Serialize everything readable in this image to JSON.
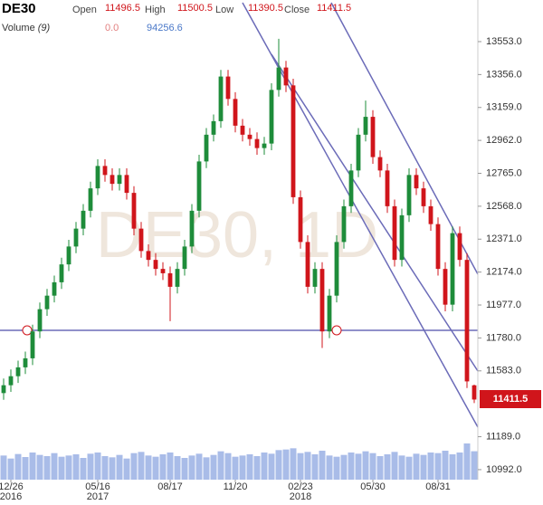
{
  "chart_data": {
    "type": "candlestick",
    "symbol": "DE30",
    "watermark": "DE30, 1D",
    "ohlc_header": [
      {
        "name": "Open",
        "value": 11496.5
      },
      {
        "name": "High",
        "value": 11500.5
      },
      {
        "name": "Low",
        "value": 11390.5
      },
      {
        "name": "Close",
        "value": 11411.5
      }
    ],
    "volume_header": {
      "name": "Volume",
      "period": "(9)",
      "values": [
        {
          "value": 0,
          "label": "0.0"
        },
        94256.6
      ]
    },
    "categories": [
      null,
      "12/26",
      null,
      null,
      null,
      null,
      null,
      null,
      null,
      null,
      null,
      null,
      null,
      "05/16",
      null,
      null,
      null,
      null,
      null,
      null,
      null,
      null,
      null,
      "08/17",
      null,
      null,
      null,
      null,
      null,
      null,
      null,
      null,
      "11/20",
      null,
      null,
      null,
      null,
      null,
      null,
      null,
      null,
      "02/23",
      null,
      null,
      null,
      null,
      null,
      null,
      null,
      null,
      null,
      "05/30",
      null,
      null,
      null,
      null,
      null,
      null,
      null,
      null,
      "08/31",
      null,
      null,
      null,
      null,
      null
    ],
    "years": [
      null,
      "2016",
      null,
      null,
      null,
      null,
      null,
      null,
      null,
      null,
      null,
      null,
      null,
      "2017",
      null,
      null,
      null,
      null,
      null,
      null,
      null,
      null,
      null,
      null,
      null,
      null,
      null,
      null,
      null,
      null,
      null,
      null,
      null,
      null,
      null,
      null,
      null,
      null,
      null,
      null,
      null,
      "2018",
      null,
      null,
      null,
      null,
      null,
      null,
      null,
      null,
      null,
      null,
      null,
      null,
      null,
      null,
      null,
      null,
      null,
      null,
      null,
      null,
      null,
      null,
      null,
      null
    ],
    "open": [
      11450,
      11497,
      11551,
      11604,
      11658,
      11819,
      11952,
      12033,
      12113,
      12220,
      12327,
      12434,
      12541,
      12675,
      12809,
      12755,
      12702,
      12755,
      12648,
      12434,
      12300,
      12247,
      12193,
      12167,
      12086,
      12193,
      12327,
      12541,
      12836,
      12996,
      13077,
      13344,
      13210,
      13050,
      12996,
      12970,
      12916,
      12943,
      13264,
      13398,
      13291,
      12622,
      12354,
      12086,
      12193,
      11819,
      12033,
      12354,
      12568,
      12782,
      12996,
      13103,
      12862,
      12782,
      12568,
      12247,
      12514,
      12755,
      12675,
      12568,
      12461,
      12193,
      11979,
      12407,
      12247,
      11496.5
    ],
    "high": [
      11537,
      11591,
      11644,
      11698,
      11859,
      11992,
      12073,
      12153,
      12260,
      12367,
      12474,
      12581,
      12715,
      12849,
      12849,
      12795,
      12795,
      12795,
      12688,
      12474,
      12340,
      12287,
      12233,
      12207,
      12233,
      12367,
      12581,
      12876,
      13036,
      13117,
      13384,
      13384,
      13250,
      13090,
      13036,
      13010,
      12983,
      13304,
      13570,
      13438,
      13331,
      12662,
      12394,
      12233,
      12233,
      12073,
      12394,
      12608,
      12822,
      13036,
      13200,
      13143,
      12902,
      12822,
      12608,
      12554,
      12795,
      12795,
      12715,
      12608,
      12501,
      12233,
      12447,
      12447,
      12287,
      11500.5
    ],
    "low": [
      11410,
      11457,
      11511,
      11564,
      11618,
      11779,
      11912,
      11993,
      12073,
      12180,
      12287,
      12394,
      12501,
      12635,
      12715,
      12662,
      12662,
      12608,
      12394,
      12260,
      12207,
      12153,
      12127,
      11880,
      12046,
      12153,
      12287,
      12501,
      12796,
      12956,
      13037,
      13170,
      13010,
      12956,
      12930,
      12876,
      12876,
      12903,
      13224,
      13251,
      12582,
      12314,
      12046,
      12046,
      11720,
      11779,
      11993,
      12314,
      12528,
      12742,
      12956,
      12822,
      12742,
      12528,
      12207,
      12207,
      12474,
      12635,
      12528,
      12421,
      12153,
      11939,
      11939,
      12207,
      11480,
      11390.5
    ],
    "close": [
      11497,
      11551,
      11604,
      11658,
      11819,
      11952,
      12033,
      12113,
      12220,
      12327,
      12434,
      12541,
      12675,
      12809,
      12755,
      12702,
      12755,
      12648,
      12434,
      12300,
      12247,
      12193,
      12167,
      12086,
      12193,
      12327,
      12541,
      12836,
      12996,
      13077,
      13344,
      13210,
      13050,
      12996,
      12970,
      12916,
      12943,
      13264,
      13398,
      13291,
      12622,
      12354,
      12086,
      12193,
      11819,
      12033,
      12354,
      12568,
      12782,
      12996,
      13103,
      12862,
      12782,
      12568,
      12247,
      12514,
      12755,
      12675,
      12568,
      12461,
      12193,
      11979,
      12407,
      12247,
      11520,
      11411.5
    ],
    "volume": [
      80000,
      70000,
      85000,
      75000,
      90000,
      82000,
      78000,
      88000,
      76000,
      80000,
      84000,
      72000,
      86000,
      90000,
      78000,
      74000,
      82000,
      70000,
      88000,
      92000,
      80000,
      76000,
      84000,
      90000,
      78000,
      72000,
      80000,
      86000,
      74000,
      82000,
      94000,
      88000,
      76000,
      80000,
      84000,
      78000,
      90000,
      86000,
      98000,
      100000,
      104000,
      88000,
      92000,
      84000,
      96000,
      80000,
      76000,
      82000,
      90000,
      86000,
      94000,
      88000,
      78000,
      84000,
      92000,
      80000,
      76000,
      86000,
      82000,
      90000,
      88000,
      96000,
      84000,
      90000,
      120000,
      94256.6
    ],
    "up_color": "#1e8c3a",
    "down_color": "#d0151b",
    "volume_color": "#6f8fd8",
    "ylim": [
      10932,
      13802
    ],
    "volume_lim": [
      0,
      600000
    ],
    "yticks": [
      {
        "value": 10992,
        "label": "10992.0"
      },
      {
        "value": 11189,
        "label": "11189.0"
      },
      {
        "value": 11583,
        "label": "11583.0"
      },
      {
        "value": 11780,
        "label": "11780.0"
      },
      {
        "value": 11977,
        "label": "11977.0"
      },
      {
        "value": 12174,
        "label": "12174.0"
      },
      {
        "value": 12371,
        "label": "12371.0"
      },
      {
        "value": 12568,
        "label": "12568.0"
      },
      {
        "value": 12765,
        "label": "12765.0"
      },
      {
        "value": 12962,
        "label": "12962.0"
      },
      {
        "value": 13159,
        "label": "13159.0"
      },
      {
        "value": 13356,
        "label": "13356.0"
      },
      {
        "value": 13553,
        "label": "13553.0"
      }
    ],
    "last_price": 11411.5
  }
}
